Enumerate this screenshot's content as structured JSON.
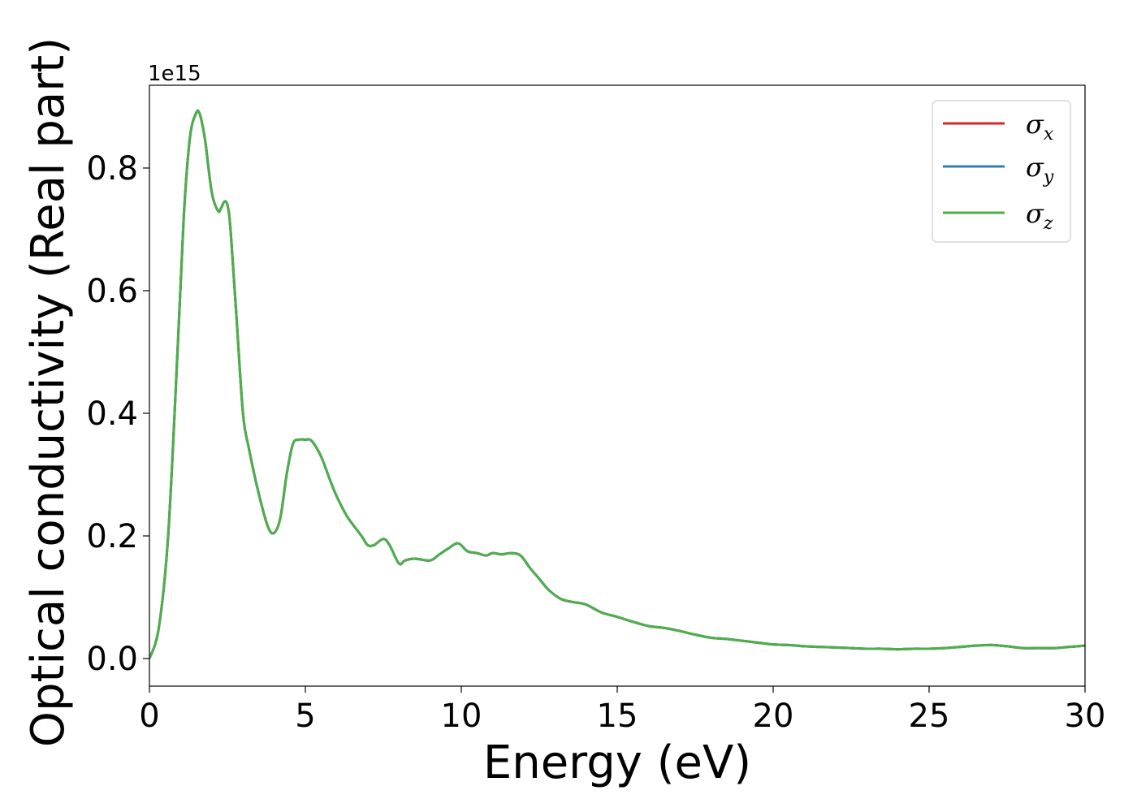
{
  "chart_data": {
    "type": "line",
    "title": "",
    "xlabel": "Energy (eV)",
    "ylabel": "Optical conductivity (Real part)",
    "y_offset_text": "1e15",
    "xlim": [
      0,
      30
    ],
    "ylim": [
      -0.045,
      0.935
    ],
    "x_ticks": [
      0,
      5,
      10,
      15,
      20,
      25,
      30
    ],
    "x_tick_labels": [
      "0",
      "5",
      "10",
      "15",
      "20",
      "25",
      "30"
    ],
    "y_ticks": [
      0.0,
      0.2,
      0.4,
      0.6,
      0.8
    ],
    "y_tick_labels": [
      "0.0",
      "0.2",
      "0.4",
      "0.6",
      "0.8"
    ],
    "grid": false,
    "legend_position": "top-right",
    "x": [
      0,
      0.3,
      0.6,
      0.9,
      1.1,
      1.3,
      1.5,
      1.6,
      1.7,
      1.8,
      2.0,
      2.2,
      2.3,
      2.4,
      2.5,
      2.6,
      2.8,
      3.0,
      3.2,
      3.5,
      3.8,
      4.0,
      4.2,
      4.4,
      4.6,
      4.8,
      5.0,
      5.2,
      5.5,
      5.8,
      6.0,
      6.3,
      6.5,
      6.8,
      7.0,
      7.2,
      7.5,
      7.7,
      8.0,
      8.2,
      8.5,
      9.0,
      9.3,
      9.6,
      9.9,
      10.2,
      10.5,
      10.8,
      11.0,
      11.3,
      11.6,
      11.9,
      12.2,
      12.5,
      12.8,
      13.2,
      13.6,
      14.0,
      14.5,
      15.0,
      15.5,
      16.0,
      16.5,
      17.0,
      17.5,
      18.0,
      18.5,
      19.0,
      19.5,
      20.0,
      20.5,
      21.0,
      21.5,
      22.0,
      22.5,
      23.0,
      23.5,
      24.0,
      24.5,
      25.0,
      25.5,
      26.0,
      26.5,
      27.0,
      27.5,
      28.0,
      28.5,
      29.0,
      29.5,
      30.0
    ],
    "series": [
      {
        "name": "σx",
        "color": "#d62728",
        "values": [
          0.0,
          0.05,
          0.2,
          0.5,
          0.72,
          0.85,
          0.89,
          0.89,
          0.87,
          0.84,
          0.76,
          0.73,
          0.735,
          0.745,
          0.74,
          0.7,
          0.55,
          0.4,
          0.34,
          0.27,
          0.215,
          0.205,
          0.23,
          0.3,
          0.35,
          0.357,
          0.357,
          0.355,
          0.33,
          0.29,
          0.265,
          0.235,
          0.22,
          0.2,
          0.185,
          0.185,
          0.195,
          0.185,
          0.155,
          0.16,
          0.163,
          0.16,
          0.17,
          0.18,
          0.188,
          0.175,
          0.172,
          0.168,
          0.172,
          0.17,
          0.172,
          0.168,
          0.148,
          0.13,
          0.112,
          0.097,
          0.092,
          0.088,
          0.075,
          0.068,
          0.06,
          0.053,
          0.05,
          0.045,
          0.039,
          0.034,
          0.032,
          0.029,
          0.026,
          0.023,
          0.022,
          0.02,
          0.019,
          0.018,
          0.017,
          0.016,
          0.016,
          0.015,
          0.016,
          0.016,
          0.017,
          0.019,
          0.021,
          0.022,
          0.02,
          0.017,
          0.017,
          0.017,
          0.019,
          0.021
        ]
      },
      {
        "name": "σy",
        "color": "#377eb8",
        "values": [
          0.0,
          0.05,
          0.2,
          0.5,
          0.72,
          0.85,
          0.89,
          0.89,
          0.87,
          0.84,
          0.76,
          0.73,
          0.735,
          0.745,
          0.74,
          0.7,
          0.55,
          0.4,
          0.34,
          0.27,
          0.215,
          0.205,
          0.23,
          0.3,
          0.35,
          0.357,
          0.357,
          0.355,
          0.33,
          0.29,
          0.265,
          0.235,
          0.22,
          0.2,
          0.185,
          0.185,
          0.195,
          0.185,
          0.155,
          0.16,
          0.163,
          0.16,
          0.17,
          0.18,
          0.188,
          0.175,
          0.172,
          0.168,
          0.172,
          0.17,
          0.172,
          0.168,
          0.148,
          0.13,
          0.112,
          0.097,
          0.092,
          0.088,
          0.075,
          0.068,
          0.06,
          0.053,
          0.05,
          0.045,
          0.039,
          0.034,
          0.032,
          0.029,
          0.026,
          0.023,
          0.022,
          0.02,
          0.019,
          0.018,
          0.017,
          0.016,
          0.016,
          0.015,
          0.016,
          0.016,
          0.017,
          0.019,
          0.021,
          0.022,
          0.02,
          0.017,
          0.017,
          0.017,
          0.019,
          0.021
        ]
      },
      {
        "name": "σz",
        "color": "#4daf4a",
        "values": [
          0.0,
          0.05,
          0.2,
          0.5,
          0.72,
          0.85,
          0.89,
          0.89,
          0.87,
          0.84,
          0.76,
          0.73,
          0.735,
          0.745,
          0.74,
          0.7,
          0.55,
          0.4,
          0.34,
          0.27,
          0.215,
          0.205,
          0.23,
          0.3,
          0.35,
          0.357,
          0.357,
          0.355,
          0.33,
          0.29,
          0.265,
          0.235,
          0.22,
          0.2,
          0.185,
          0.185,
          0.195,
          0.185,
          0.155,
          0.16,
          0.163,
          0.16,
          0.17,
          0.18,
          0.188,
          0.175,
          0.172,
          0.168,
          0.172,
          0.17,
          0.172,
          0.168,
          0.148,
          0.13,
          0.112,
          0.097,
          0.092,
          0.088,
          0.075,
          0.068,
          0.06,
          0.053,
          0.05,
          0.045,
          0.039,
          0.034,
          0.032,
          0.029,
          0.026,
          0.023,
          0.022,
          0.02,
          0.019,
          0.018,
          0.017,
          0.016,
          0.016,
          0.015,
          0.016,
          0.016,
          0.017,
          0.019,
          0.021,
          0.022,
          0.02,
          0.017,
          0.017,
          0.017,
          0.019,
          0.021
        ]
      }
    ],
    "legend": [
      {
        "symbol": "σ",
        "sub": "x",
        "color": "#d62728"
      },
      {
        "symbol": "σ",
        "sub": "y",
        "color": "#377eb8"
      },
      {
        "symbol": "σ",
        "sub": "z",
        "color": "#4daf4a"
      }
    ]
  }
}
